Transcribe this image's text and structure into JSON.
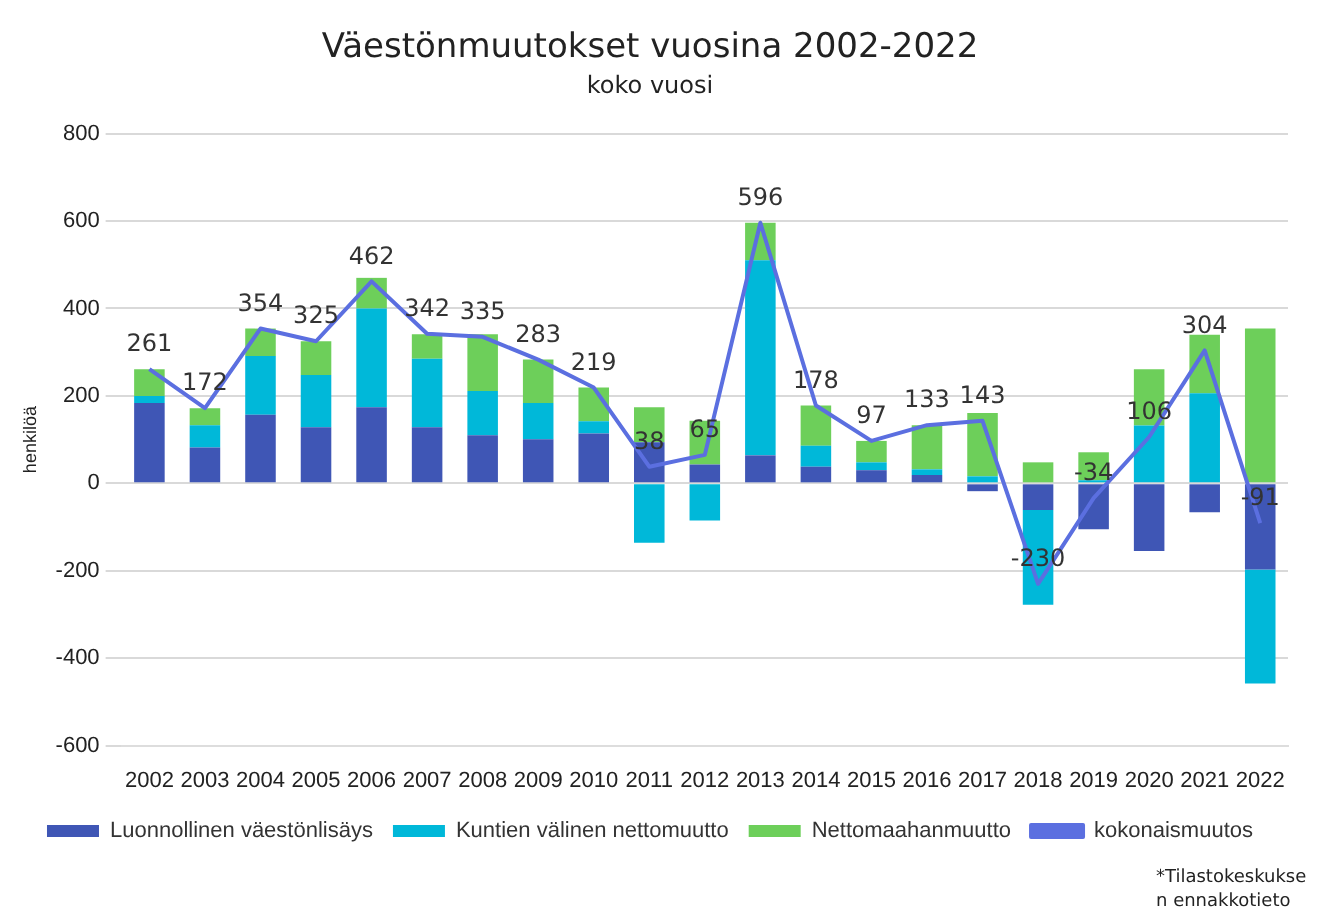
{
  "chart_data": {
    "type": "bar",
    "title": "Väestönmuutokset vuosina 2002-2022",
    "subtitle": "koko vuosi",
    "ylabel": "henkilöä",
    "categories": [
      "2002",
      "2003",
      "2004",
      "2005",
      "2006",
      "2007",
      "2008",
      "2009",
      "2010",
      "2011",
      "2012",
      "2013",
      "2014",
      "2015",
      "2016",
      "2017",
      "2018",
      "2019",
      "2020",
      "2021",
      "2022"
    ],
    "stacked": true,
    "series": [
      {
        "name": "Luonnollinen väestönlisäys",
        "color": "#3f56b5",
        "values": [
          184,
          82,
          157,
          128,
          174,
          128,
          110,
          101,
          114,
          94,
          43,
          64,
          38,
          30,
          19,
          -18,
          -61,
          -105,
          -155,
          -66,
          -197
        ]
      },
      {
        "name": "Kuntien välinen nettomuutto",
        "color": "#00b8d9",
        "values": [
          16,
          51,
          134,
          120,
          226,
          157,
          101,
          83,
          28,
          -136,
          -85,
          446,
          48,
          18,
          13,
          16,
          -217,
          7,
          132,
          206,
          -261
        ]
      },
      {
        "name": "Nettomaahanmuutto",
        "color": "#6dcf5a",
        "values": [
          61,
          39,
          63,
          77,
          70,
          56,
          130,
          99,
          77,
          80,
          100,
          86,
          92,
          49,
          101,
          145,
          48,
          64,
          129,
          134,
          354
        ]
      },
      {
        "name": "kokonaismuutos",
        "type": "line",
        "color": "#5b6fe0",
        "marker": "none",
        "values": [
          261,
          172,
          354,
          325,
          462,
          342,
          335,
          283,
          219,
          38,
          65,
          596,
          178,
          97,
          133,
          143,
          -230,
          -34,
          106,
          304,
          -91
        ],
        "value_labels": [
          "261",
          "172",
          "354",
          "325",
          "462",
          "342",
          "335",
          "283",
          "219",
          "38",
          "65",
          "596",
          "178",
          "97",
          "133",
          "143",
          "-230",
          "-34",
          "106",
          "304",
          "-91"
        ]
      }
    ],
    "ylim": [
      -600,
      800
    ],
    "yticks": [
      -600,
      -400,
      -200,
      0,
      200,
      400,
      600,
      800
    ],
    "grid": "y",
    "legend": "bottom",
    "annotations": [
      "*Tilastokeskuksen ennakkotieto"
    ]
  }
}
